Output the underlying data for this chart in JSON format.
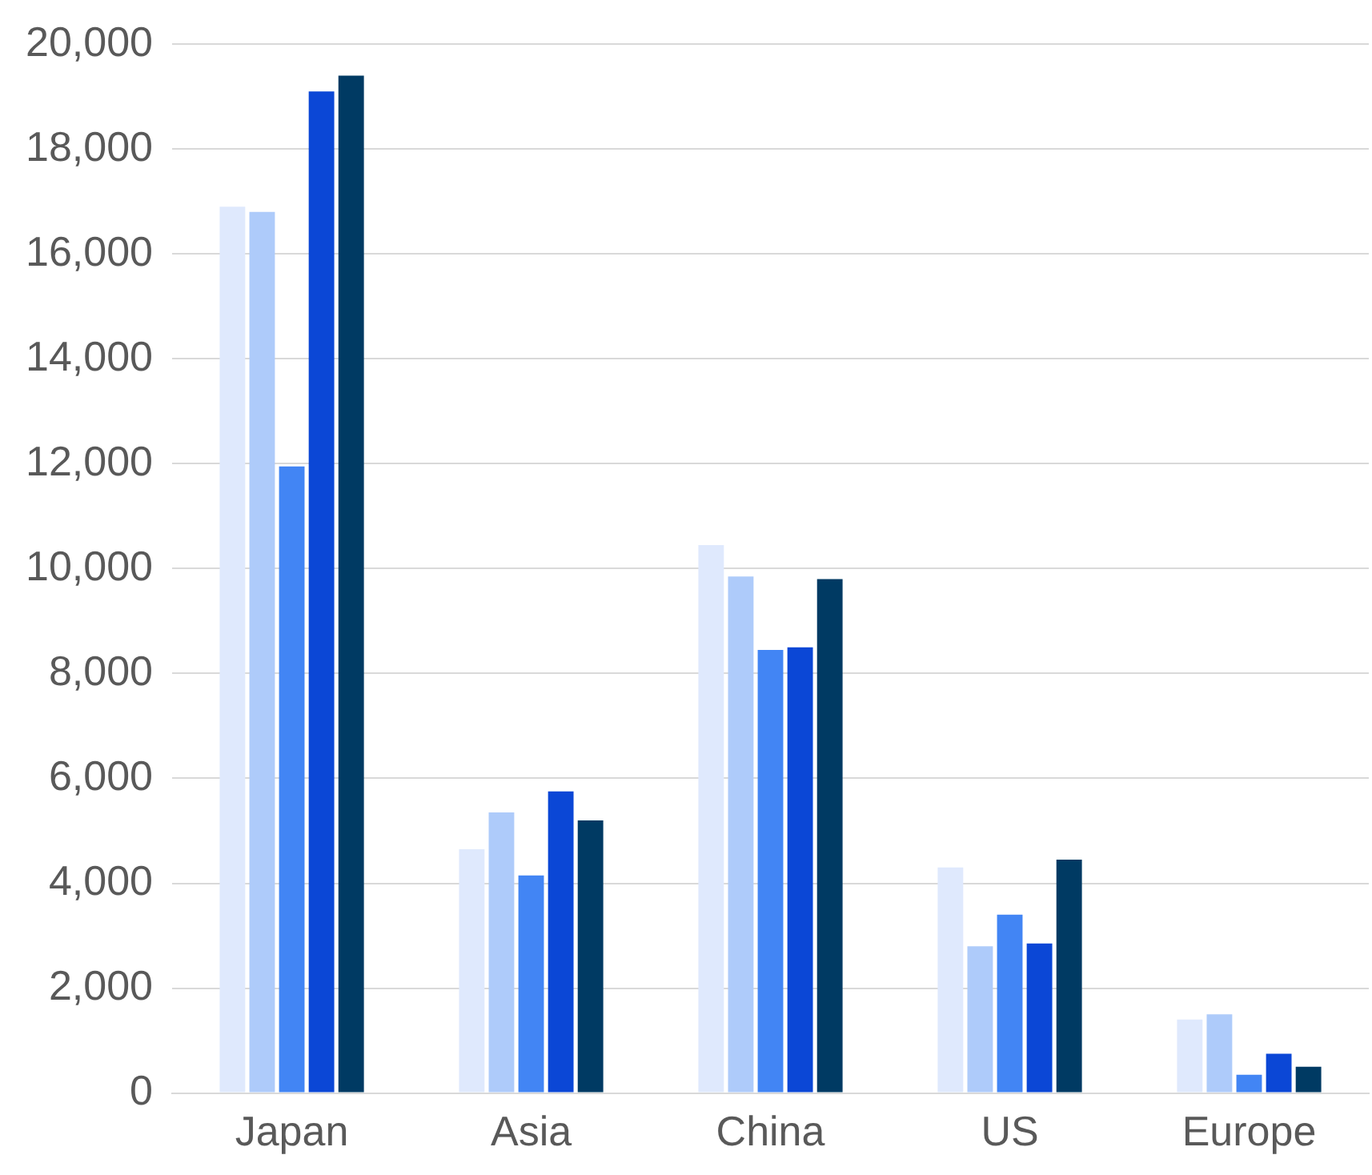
{
  "chart_data": {
    "type": "bar",
    "categories": [
      "Japan",
      "Asia",
      "China",
      "US",
      "Europe"
    ],
    "series": [
      {
        "color": "#dfe9fd",
        "values": [
          16900,
          4650,
          10450,
          4300,
          1400
        ]
      },
      {
        "color": "#aecbfa",
        "values": [
          16800,
          5350,
          9850,
          2800,
          1500
        ]
      },
      {
        "color": "#4285f4",
        "values": [
          11950,
          4150,
          8450,
          3400,
          350
        ]
      },
      {
        "color": "#0b47d6",
        "values": [
          19100,
          5750,
          8500,
          2850,
          750
        ]
      },
      {
        "color": "#003a63",
        "values": [
          19400,
          5200,
          9800,
          4450,
          500
        ]
      }
    ],
    "ylim": [
      0,
      20000
    ],
    "yticks": [
      0,
      {
        "value": 2000,
        "label": "2,000"
      },
      {
        "value": 4000,
        "label": "4,000"
      },
      {
        "value": 6000,
        "label": "6,000"
      },
      {
        "value": 8000,
        "label": "8,000"
      },
      {
        "value": 10000,
        "label": "10,000"
      },
      {
        "value": 12000,
        "label": "12,000"
      },
      {
        "value": 14000,
        "label": "14,000"
      },
      {
        "value": 16000,
        "label": "16,000"
      },
      {
        "value": 18000,
        "label": "18,000"
      },
      {
        "value": 20000,
        "label": "20,000"
      }
    ],
    "grid": "y",
    "legend": false
  }
}
